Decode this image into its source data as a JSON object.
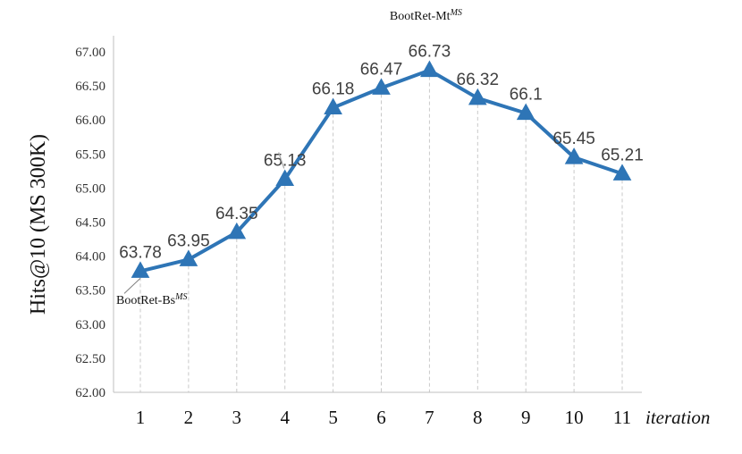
{
  "chart_data": {
    "type": "line",
    "title": "",
    "xlabel": "iteration",
    "ylabel": "Hits@10 (MS 300K)",
    "x": [
      1,
      2,
      3,
      4,
      5,
      6,
      7,
      8,
      9,
      10,
      11
    ],
    "x_tick_labels": [
      "1",
      "2",
      "3",
      "4",
      "5",
      "6",
      "7",
      "8",
      "9",
      "10",
      "11"
    ],
    "y_tick_labels": [
      "62.00",
      "62.50",
      "63.00",
      "63.50",
      "64.00",
      "64.50",
      "65.00",
      "65.50",
      "66.00",
      "66.50",
      "67.00"
    ],
    "ylim": [
      62.0,
      67.0
    ],
    "series": [
      {
        "values": [
          63.78,
          63.95,
          64.35,
          65.13,
          66.18,
          66.47,
          66.73,
          66.32,
          66.1,
          65.45,
          65.21
        ],
        "data_labels": [
          "63.78",
          "63.95",
          "64.35",
          "65.13",
          "66.18",
          "66.47",
          "66.73",
          "66.32",
          "66.1",
          "65.45",
          "65.21"
        ]
      }
    ],
    "annotations": [
      {
        "text": "BootRet-Bs",
        "superscript": "MS",
        "x": 1
      },
      {
        "text": "BootRet-Mt",
        "superscript": "MS",
        "x": 7
      }
    ],
    "grid": "vertical dashed drop lines",
    "marker": "triangle",
    "color": "#2E75B6"
  }
}
